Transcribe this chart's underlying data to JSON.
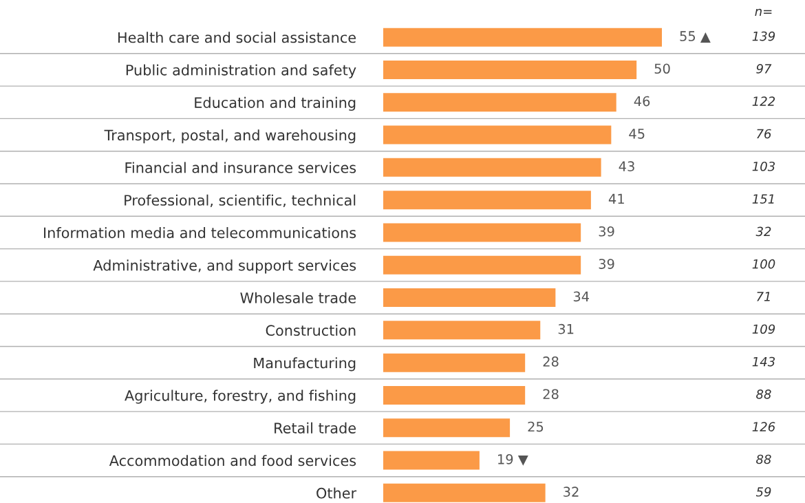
{
  "chart_data": {
    "type": "bar",
    "orientation": "horizontal",
    "grid": "y",
    "categories": [
      "Health care and social assistance",
      "Public administration and safety",
      "Education and training",
      "Transport, postal, and warehousing",
      "Financial and insurance services",
      "Professional, scientific, technical",
      "Information media and telecommunications",
      "Administrative, and support services",
      "Wholesale trade",
      "Construction",
      "Manufacturing",
      "Agriculture, forestry, and fishing",
      "Retail trade",
      "Accommodation and food services",
      "Other"
    ],
    "values": [
      55,
      50,
      46,
      45,
      43,
      41,
      39,
      39,
      34,
      31,
      28,
      28,
      25,
      19,
      32
    ],
    "value_labels": [
      "55 ▲",
      "50",
      "46",
      "45",
      "43",
      "41",
      "39",
      "39",
      "34",
      "31",
      "28",
      "28",
      "25",
      "19 ▼",
      "32"
    ],
    "color": "#fb9a47",
    "annotations": [
      "n=",
      "139",
      "97",
      "122",
      "76",
      "103",
      "151",
      "32",
      "100",
      "71",
      "109",
      "143",
      "88",
      "126",
      "88",
      "59"
    ]
  }
}
